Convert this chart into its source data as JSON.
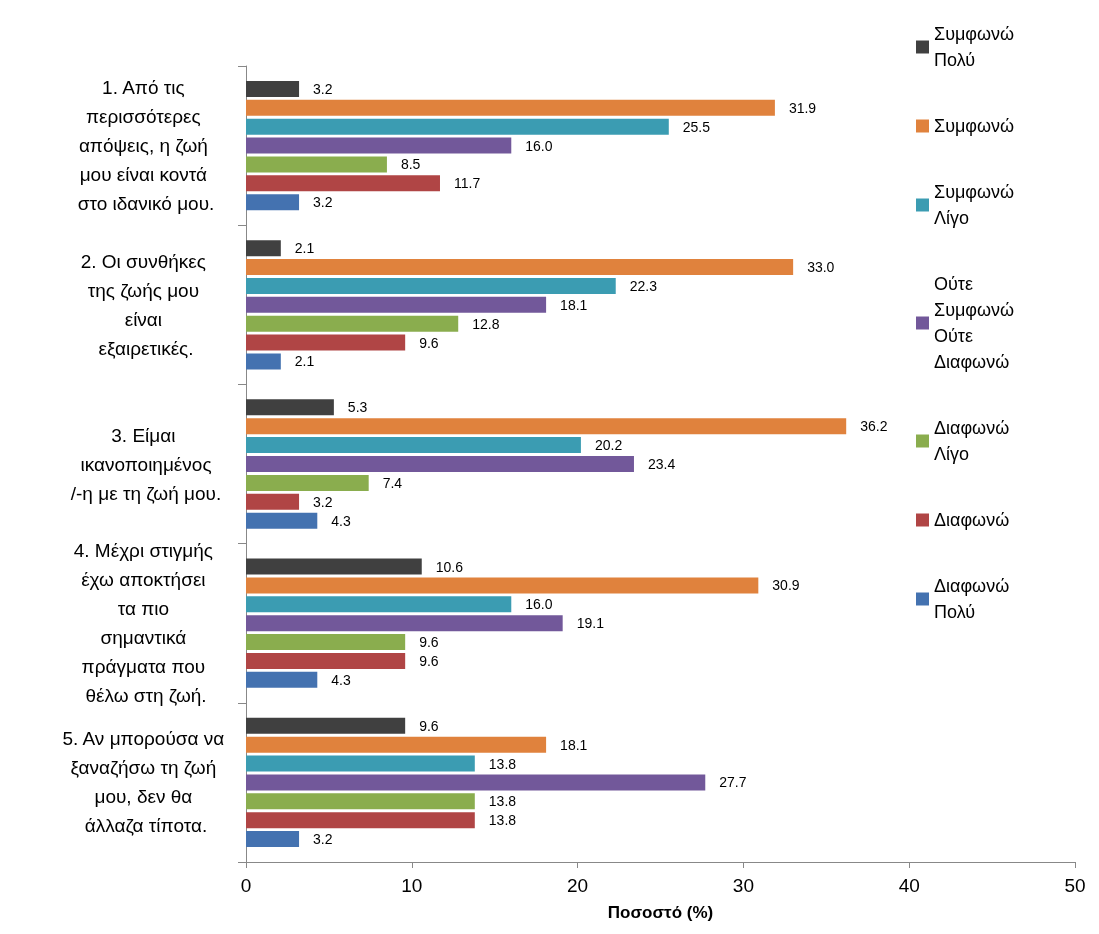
{
  "chart_data": {
    "type": "bar",
    "orientation": "horizontal",
    "xlabel": "Ποσοστό (%)",
    "categories": [
      "1. Από τις περισσότερες απόψεις, η ζωή μου είναι κοντά στο ιδανικό μου.",
      "2. Οι συνθήκες της ζωής μου είναι εξαιρετικές.",
      "3. Είμαι ικανοποιημένος/-η με τη ζωή μου.",
      "4. Μέχρι στιγμής έχω αποκτήσει τα πιο σημαντικά πράγματα που θέλω στη ζωή.",
      "5. Αν μπορούσα να ξαναζήσω τη ζωή μου, δεν θα άλλαζα τίποτα."
    ],
    "series": [
      {
        "name": "Συμφωνώ Πολύ",
        "color": "#404040",
        "values": [
          3.2,
          2.1,
          5.3,
          10.6,
          9.6
        ],
        "value_labels": [
          "3.2",
          "2.1",
          "5.3",
          "10.6",
          "9.6"
        ]
      },
      {
        "name": "Συμφωνώ",
        "color": "#e0823d",
        "values": [
          31.9,
          33.0,
          36.2,
          30.9,
          18.1
        ],
        "value_labels": [
          "31.9",
          "33.0",
          "36.2",
          "30.9",
          "18.1"
        ]
      },
      {
        "name": "Συμφωνώ Λίγο",
        "color": "#3b9cb2",
        "values": [
          25.5,
          22.3,
          20.2,
          16.0,
          13.8
        ],
        "value_labels": [
          "25.5",
          "22.3",
          "20.2",
          "16.0",
          "13.8"
        ]
      },
      {
        "name": "Ούτε Συμφωνώ Ούτε Διαφωνώ",
        "color": "#72589a",
        "values": [
          16.0,
          18.1,
          23.4,
          19.1,
          27.7
        ],
        "value_labels": [
          "16.0",
          "18.1",
          "23.4",
          "19.1",
          "27.7"
        ]
      },
      {
        "name": "Διαφωνώ Λίγο",
        "color": "#8aad4e",
        "values": [
          8.5,
          12.8,
          7.4,
          9.6,
          13.8
        ],
        "value_labels": [
          "8.5",
          "12.8",
          "7.4",
          "9.6",
          "13.8"
        ]
      },
      {
        "name": "Διαφωνώ",
        "color": "#b04545",
        "values": [
          11.7,
          9.6,
          3.2,
          9.6,
          13.8
        ],
        "value_labels": [
          "11.7",
          "9.6",
          "3.2",
          "9.6",
          "13.8"
        ]
      },
      {
        "name": "Διαφωνώ Πολύ",
        "color": "#4472b0",
        "values": [
          3.2,
          2.1,
          4.3,
          4.3,
          3.2
        ],
        "value_labels": [
          "3.2",
          "2.1",
          "4.3",
          "4.3",
          "3.2"
        ]
      }
    ],
    "xlim": [
      0,
      50
    ],
    "xticks": [
      0,
      10,
      20,
      30,
      40,
      50
    ],
    "grid": false,
    "legend": "top right"
  }
}
